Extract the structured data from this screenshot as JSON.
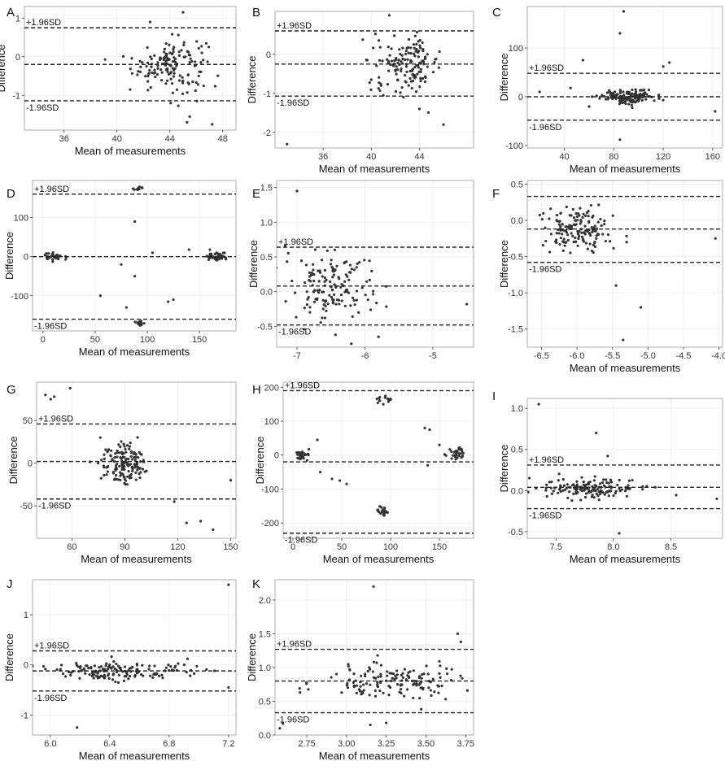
{
  "panels": [
    {
      "letter": "A",
      "xlabel": "Mean of measurements",
      "ylabel": "Difference",
      "upper_label": "+1.96SD",
      "lower_label": "-1.96SD",
      "xlim": [
        33,
        49
      ],
      "ylim": [
        -1.9,
        1.3
      ],
      "xticks": [
        36,
        40,
        44,
        48
      ],
      "yticks": [
        -1,
        0,
        1
      ],
      "mean": -0.2,
      "upper": 0.75,
      "lower": -1.14,
      "cluster": {
        "cx": 44,
        "sx": 1.4,
        "cy": -0.2,
        "sy": 0.35,
        "n": 150
      },
      "outliers": [
        [
          42.5,
          0.9
        ],
        [
          45,
          1.15
        ],
        [
          45.3,
          -1.7
        ],
        [
          47.2,
          -1.75
        ],
        [
          45.5,
          -1.55
        ],
        [
          41,
          -0.85
        ]
      ]
    },
    {
      "letter": "B",
      "xlabel": "Mean of measurements",
      "ylabel": "Difference",
      "upper_label": "+1.96SD",
      "lower_label": "-1.96SD",
      "xlim": [
        32,
        48.5
      ],
      "ylim": [
        -2.4,
        1.1
      ],
      "xticks": [
        36,
        40,
        44
      ],
      "yticks": [
        -2,
        -1,
        0
      ],
      "mean": -0.25,
      "upper": 0.6,
      "lower": -1.07,
      "cluster": {
        "cx": 43,
        "sx": 1.4,
        "cy": -0.25,
        "sy": 0.35,
        "n": 150
      },
      "outliers": [
        [
          33,
          -2.3
        ],
        [
          46,
          -1.8
        ],
        [
          41.5,
          1.0
        ],
        [
          41,
          -1.05
        ],
        [
          44,
          -1.4
        ]
      ]
    },
    {
      "letter": "C",
      "xlabel": "Mean of measurements",
      "ylabel": "Difference",
      "upper_label": "+1.96SD",
      "lower_label": "-1.96SD",
      "xlim": [
        10,
        168
      ],
      "ylim": [
        -105,
        185
      ],
      "xticks": [
        40,
        80,
        120,
        160
      ],
      "yticks": [
        -100,
        0,
        100
      ],
      "mean": 0,
      "upper": 48,
      "lower": -48,
      "cluster": {
        "cx": 92,
        "sx": 11,
        "cy": 0,
        "sy": 7,
        "n": 150
      },
      "outliers": [
        [
          88,
          175
        ],
        [
          85,
          130
        ],
        [
          55,
          75
        ],
        [
          125,
          70
        ],
        [
          120,
          62
        ],
        [
          85,
          -88
        ],
        [
          45,
          18
        ],
        [
          20,
          10
        ],
        [
          162,
          -30
        ],
        [
          60,
          -20
        ]
      ]
    },
    {
      "letter": "D",
      "xlabel": "Mean of measurements",
      "ylabel": "Difference",
      "upper_label": "+1.96SD",
      "lower_label": "-1.96SD",
      "xlim": [
        -10,
        185
      ],
      "ylim": [
        -190,
        195
      ],
      "xticks": [
        0,
        50,
        100,
        150
      ],
      "yticks": [
        -100,
        0,
        100
      ],
      "mean": 0,
      "upper": 160,
      "lower": -160,
      "clusters": [
        {
          "cx": 10,
          "sx": 5,
          "cy": 0,
          "sy": 5,
          "n": 40
        },
        {
          "cx": 168,
          "sx": 5,
          "cy": 0,
          "sy": 6,
          "n": 40
        },
        {
          "cx": 92,
          "sx": 3,
          "cy": 172,
          "sy": 4,
          "n": 12
        },
        {
          "cx": 92,
          "sx": 3,
          "cy": -170,
          "sy": 4,
          "n": 14
        }
      ],
      "outliers": [
        [
          55,
          -100
        ],
        [
          88,
          90
        ],
        [
          88,
          -50
        ],
        [
          105,
          10
        ],
        [
          125,
          -110
        ],
        [
          120,
          -115
        ],
        [
          140,
          18
        ],
        [
          160,
          18
        ],
        [
          80,
          -130
        ],
        [
          75,
          -20
        ]
      ]
    },
    {
      "letter": "E",
      "xlabel": "",
      "ylabel": "Difference",
      "upper_label": "+1.96SD",
      "lower_label": "-1.96SD",
      "xlim": [
        -7.3,
        -4.4
      ],
      "ylim": [
        -0.8,
        1.6
      ],
      "xticks": [
        -7,
        -6,
        -5
      ],
      "yticks": [
        -0.5,
        0.0,
        0.5,
        1.0,
        1.5
      ],
      "ytick_labels": [
        "-0.5",
        "0.0",
        "0.5",
        "1.0",
        "1.5"
      ],
      "mean": 0.08,
      "upper": 0.64,
      "lower": -0.48,
      "cluster": {
        "cx": -6.5,
        "sx": 0.3,
        "cy": 0.08,
        "sy": 0.25,
        "n": 150
      },
      "outliers": [
        [
          -7.0,
          1.45
        ],
        [
          -4.5,
          -0.18
        ],
        [
          -5.8,
          -0.65
        ],
        [
          -6.2,
          -0.75
        ]
      ]
    },
    {
      "letter": "F",
      "xlabel": "Mean of measurements",
      "ylabel": "Difference",
      "upper_label": "",
      "lower_label": "-1.96SD",
      "xlim": [
        -6.7,
        -3.95
      ],
      "ylim": [
        -1.75,
        0.55
      ],
      "xticks": [
        -6.5,
        -6.0,
        -5.5,
        -5.0,
        -4.5,
        -4.0
      ],
      "xtick_labels": [
        "-6.5",
        "-6.0",
        "-5.5",
        "-5.0",
        "-4.5",
        "-4.0"
      ],
      "yticks": [
        -1.5,
        -1.0,
        -0.5,
        0.0,
        0.5
      ],
      "ytick_labels": [
        "-1.5",
        "-1.0",
        "-0.5",
        "0.0",
        "0.5"
      ],
      "mean": -0.12,
      "upper": 0.33,
      "lower": -0.58,
      "cluster": {
        "cx": -6.0,
        "sx": 0.22,
        "cy": -0.12,
        "sy": 0.17,
        "n": 150
      },
      "outliers": [
        [
          -5.35,
          -1.65
        ],
        [
          -5.1,
          -1.2
        ],
        [
          -5.45,
          -0.9
        ],
        [
          -4.05,
          -0.25
        ],
        [
          -5.3,
          -0.3
        ]
      ]
    },
    {
      "letter": "G",
      "xlabel": "Mean of measurements",
      "ylabel": "Difference",
      "upper_label": "+1.96SD",
      "lower_label": "-1.96SD",
      "xlim": [
        40,
        153
      ],
      "ylim": [
        -88,
        95
      ],
      "xticks": [
        60,
        90,
        120,
        150
      ],
      "yticks": [
        -50,
        0,
        50
      ],
      "mean": 2,
      "upper": 46,
      "lower": -42,
      "cluster": {
        "cx": 90,
        "sx": 7,
        "cy": 0,
        "sy": 13,
        "n": 150
      },
      "outliers": [
        [
          45,
          80
        ],
        [
          48,
          75
        ],
        [
          50,
          78
        ],
        [
          59,
          88
        ],
        [
          150,
          -20
        ],
        [
          125,
          -70
        ],
        [
          133,
          -68
        ],
        [
          140,
          -78
        ],
        [
          118,
          -45
        ]
      ]
    },
    {
      "letter": "H",
      "xlabel": "Mean of measurements",
      "ylabel": "Difference",
      "upper_label": "+1.96SD",
      "lower_label": "-1.96SD",
      "xlim": [
        -10,
        185
      ],
      "ylim": [
        -245,
        215
      ],
      "xticks": [
        0,
        50,
        100,
        150
      ],
      "yticks": [
        -200,
        -100,
        0,
        100,
        200
      ],
      "mean": -20,
      "upper": 190,
      "lower": -230,
      "clusters": [
        {
          "cx": 10,
          "sx": 4,
          "cy": 0,
          "sy": 7,
          "n": 30
        },
        {
          "cx": 168,
          "sx": 5,
          "cy": 0,
          "sy": 10,
          "n": 30
        },
        {
          "cx": 93,
          "sx": 4,
          "cy": 163,
          "sy": 7,
          "n": 14
        },
        {
          "cx": 92,
          "sx": 4,
          "cy": -165,
          "sy": 8,
          "n": 22
        }
      ],
      "outliers": [
        [
          25,
          45
        ],
        [
          40,
          -70
        ],
        [
          48,
          -75
        ],
        [
          55,
          -85
        ],
        [
          135,
          80
        ],
        [
          140,
          75
        ],
        [
          150,
          30
        ],
        [
          138,
          -30
        ],
        [
          28,
          -50
        ]
      ]
    },
    {
      "letter": "I",
      "xlabel": "Mean of measurements",
      "ylabel": "Difference",
      "upper_label": "+1.96SD",
      "lower_label": "-1.96SD",
      "xlim": [
        7.25,
        8.95
      ],
      "ylim": [
        -0.58,
        1.12
      ],
      "xticks": [
        7.5,
        8.0,
        8.5
      ],
      "xtick_labels": [
        "7.5",
        "8.0",
        "8.5"
      ],
      "yticks": [
        -0.5,
        0.0,
        0.5,
        1.0
      ],
      "ytick_labels": [
        "-0.5",
        "0.0",
        "0.5",
        "1.0"
      ],
      "mean": 0.04,
      "upper": 0.31,
      "lower": -0.22,
      "cluster": {
        "cx": 7.8,
        "sx": 0.22,
        "cy": 0.03,
        "sy": 0.06,
        "n": 150
      },
      "outliers": [
        [
          7.35,
          1.05
        ],
        [
          7.85,
          0.7
        ],
        [
          8.05,
          -0.52
        ],
        [
          8.9,
          -0.1
        ],
        [
          7.95,
          0.42
        ]
      ]
    },
    {
      "letter": "J",
      "xlabel": "Mean of measurements",
      "ylabel": "Difference",
      "upper_label": "+1.96SD",
      "lower_label": "-1.96SD",
      "xlim": [
        5.88,
        7.25
      ],
      "ylim": [
        -1.4,
        1.7
      ],
      "xticks": [
        6.0,
        6.4,
        6.8,
        7.2
      ],
      "xtick_labels": [
        "6.0",
        "6.4",
        "6.8",
        "7.2"
      ],
      "yticks": [
        -1,
        0,
        1
      ],
      "mean": -0.12,
      "upper": 0.28,
      "lower": -0.52,
      "cluster": {
        "cx": 6.5,
        "sx": 0.22,
        "cy": -0.12,
        "sy": 0.09,
        "n": 150
      },
      "outliers": [
        [
          7.2,
          1.6
        ],
        [
          6.18,
          -1.25
        ],
        [
          7.2,
          -0.45
        ]
      ]
    },
    {
      "letter": "K",
      "xlabel": "Mean of measurements",
      "ylabel": "Difference",
      "upper_label": "+1.96SD",
      "lower_label": "-1.96SD",
      "xlim": [
        2.55,
        3.8
      ],
      "ylim": [
        0.0,
        2.3
      ],
      "xticks": [
        2.75,
        3.0,
        3.25,
        3.5,
        3.75
      ],
      "xtick_labels": [
        "2.75",
        "3.00",
        "3.25",
        "3.50",
        "3.75"
      ],
      "yticks": [
        0.0,
        0.5,
        1.0,
        1.5,
        2.0
      ],
      "ytick_labels": [
        "0.0",
        "0.5",
        "1.0",
        "1.5",
        "2.0"
      ],
      "mean": 0.8,
      "upper": 1.27,
      "lower": 0.33,
      "cluster": {
        "cx": 3.25,
        "sx": 0.22,
        "cy": 0.8,
        "sy": 0.13,
        "n": 150
      },
      "outliers": [
        [
          3.17,
          2.2
        ],
        [
          3.7,
          1.5
        ],
        [
          3.72,
          1.38
        ],
        [
          3.15,
          0.15
        ],
        [
          3.25,
          0.18
        ],
        [
          2.58,
          0.1
        ],
        [
          2.6,
          0.17
        ]
      ]
    }
  ],
  "chart_data": [
    {
      "type": "scatter",
      "panel": "A",
      "xlabel": "Mean of measurements",
      "ylabel": "Difference",
      "xlim": [
        33,
        49
      ],
      "ylim": [
        -1.9,
        1.3
      ],
      "mean": -0.2,
      "upper_limit": 0.75,
      "lower_limit": -1.14,
      "grid": true
    },
    {
      "type": "scatter",
      "panel": "B",
      "xlabel": "Mean of measurements",
      "ylabel": "Difference",
      "xlim": [
        32,
        48.5
      ],
      "ylim": [
        -2.4,
        1.1
      ],
      "mean": -0.25,
      "upper_limit": 0.6,
      "lower_limit": -1.07,
      "grid": true
    },
    {
      "type": "scatter",
      "panel": "C",
      "xlabel": "Mean of measurements",
      "ylabel": "Difference",
      "xlim": [
        10,
        168
      ],
      "ylim": [
        -105,
        185
      ],
      "mean": 0,
      "upper_limit": 48,
      "lower_limit": -48,
      "grid": true
    },
    {
      "type": "scatter",
      "panel": "D",
      "xlabel": "Mean of measurements",
      "ylabel": "Difference",
      "xlim": [
        -10,
        185
      ],
      "ylim": [
        -190,
        195
      ],
      "mean": 0,
      "upper_limit": 160,
      "lower_limit": -160,
      "grid": true
    },
    {
      "type": "scatter",
      "panel": "E",
      "xlabel": "",
      "ylabel": "Difference",
      "xlim": [
        -7.3,
        -4.4
      ],
      "ylim": [
        -0.8,
        1.6
      ],
      "mean": 0.08,
      "upper_limit": 0.64,
      "lower_limit": -0.48,
      "grid": true
    },
    {
      "type": "scatter",
      "panel": "F",
      "xlabel": "Mean of measurements",
      "ylabel": "Difference",
      "xlim": [
        -6.7,
        -3.95
      ],
      "ylim": [
        -1.75,
        0.55
      ],
      "mean": -0.12,
      "upper_limit": 0.33,
      "lower_limit": -0.58,
      "grid": true
    },
    {
      "type": "scatter",
      "panel": "G",
      "xlabel": "Mean of measurements",
      "ylabel": "Difference",
      "xlim": [
        40,
        153
      ],
      "ylim": [
        -88,
        95
      ],
      "mean": 2,
      "upper_limit": 46,
      "lower_limit": -42,
      "grid": true
    },
    {
      "type": "scatter",
      "panel": "H",
      "xlabel": "Mean of measurements",
      "ylabel": "Difference",
      "xlim": [
        -10,
        185
      ],
      "ylim": [
        -245,
        215
      ],
      "mean": -20,
      "upper_limit": 190,
      "lower_limit": -230,
      "grid": true
    },
    {
      "type": "scatter",
      "panel": "I",
      "xlabel": "Mean of measurements",
      "ylabel": "Difference",
      "xlim": [
        7.25,
        8.95
      ],
      "ylim": [
        -0.58,
        1.12
      ],
      "mean": 0.04,
      "upper_limit": 0.31,
      "lower_limit": -0.22,
      "grid": true
    },
    {
      "type": "scatter",
      "panel": "J",
      "xlabel": "Mean of measurements",
      "ylabel": "Difference",
      "xlim": [
        5.88,
        7.25
      ],
      "ylim": [
        -1.4,
        1.7
      ],
      "mean": -0.12,
      "upper_limit": 0.28,
      "lower_limit": -0.52,
      "grid": true
    },
    {
      "type": "scatter",
      "panel": "K",
      "xlabel": "Mean of measurements",
      "ylabel": "Difference",
      "xlim": [
        2.55,
        3.8
      ],
      "ylim": [
        0.0,
        2.3
      ],
      "mean": 0.8,
      "upper_limit": 1.27,
      "lower_limit": 0.33,
      "grid": true
    }
  ]
}
